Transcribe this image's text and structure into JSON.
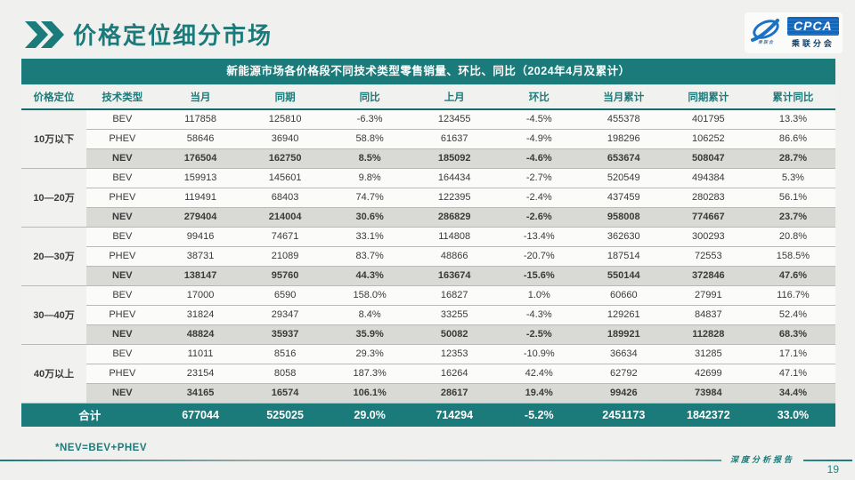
{
  "slide": {
    "title": "价格定位细分市场",
    "footnote": "*NEV=BEV+PHEV",
    "footer_label": "深度分析报告",
    "page_number": "19"
  },
  "logo": {
    "acronym": "CPCA",
    "name": "乘联分会",
    "sub": "乘联会"
  },
  "colors": {
    "teal": "#1b7b7a",
    "nev_row_bg": "#d9d9d6",
    "logo_blue": "#1565b8",
    "body_text": "#3a3a3a"
  },
  "table": {
    "title": "新能源市场各价格段不同技术类型零售销量、环比、同比（2024年4月及累计）",
    "columns": [
      "价格定位",
      "技术类型",
      "当月",
      "同期",
      "同比",
      "上月",
      "环比",
      "当月累计",
      "同期累计",
      "累计同比"
    ],
    "groups": [
      {
        "label": "10万以下",
        "rows": [
          {
            "tech": "BEV",
            "values": [
              "117858",
              "125810",
              "-6.3%",
              "123455",
              "-4.5%",
              "455378",
              "401795",
              "13.3%"
            ]
          },
          {
            "tech": "PHEV",
            "values": [
              "58646",
              "36940",
              "58.8%",
              "61637",
              "-4.9%",
              "198296",
              "106252",
              "86.6%"
            ]
          },
          {
            "tech": "NEV",
            "values": [
              "176504",
              "162750",
              "8.5%",
              "185092",
              "-4.6%",
              "653674",
              "508047",
              "28.7%"
            ]
          }
        ]
      },
      {
        "label": "10—20万",
        "rows": [
          {
            "tech": "BEV",
            "values": [
              "159913",
              "145601",
              "9.8%",
              "164434",
              "-2.7%",
              "520549",
              "494384",
              "5.3%"
            ]
          },
          {
            "tech": "PHEV",
            "values": [
              "119491",
              "68403",
              "74.7%",
              "122395",
              "-2.4%",
              "437459",
              "280283",
              "56.1%"
            ]
          },
          {
            "tech": "NEV",
            "values": [
              "279404",
              "214004",
              "30.6%",
              "286829",
              "-2.6%",
              "958008",
              "774667",
              "23.7%"
            ]
          }
        ]
      },
      {
        "label": "20—30万",
        "rows": [
          {
            "tech": "BEV",
            "values": [
              "99416",
              "74671",
              "33.1%",
              "114808",
              "-13.4%",
              "362630",
              "300293",
              "20.8%"
            ]
          },
          {
            "tech": "PHEV",
            "values": [
              "38731",
              "21089",
              "83.7%",
              "48866",
              "-20.7%",
              "187514",
              "72553",
              "158.5%"
            ]
          },
          {
            "tech": "NEV",
            "values": [
              "138147",
              "95760",
              "44.3%",
              "163674",
              "-15.6%",
              "550144",
              "372846",
              "47.6%"
            ]
          }
        ]
      },
      {
        "label": "30—40万",
        "rows": [
          {
            "tech": "BEV",
            "values": [
              "17000",
              "6590",
              "158.0%",
              "16827",
              "1.0%",
              "60660",
              "27991",
              "116.7%"
            ]
          },
          {
            "tech": "PHEV",
            "values": [
              "31824",
              "29347",
              "8.4%",
              "33255",
              "-4.3%",
              "129261",
              "84837",
              "52.4%"
            ]
          },
          {
            "tech": "NEV",
            "values": [
              "48824",
              "35937",
              "35.9%",
              "50082",
              "-2.5%",
              "189921",
              "112828",
              "68.3%"
            ]
          }
        ]
      },
      {
        "label": "40万以上",
        "rows": [
          {
            "tech": "BEV",
            "values": [
              "11011",
              "8516",
              "29.3%",
              "12353",
              "-10.9%",
              "36634",
              "31285",
              "17.1%"
            ]
          },
          {
            "tech": "PHEV",
            "values": [
              "23154",
              "8058",
              "187.3%",
              "16264",
              "42.4%",
              "62792",
              "42699",
              "47.1%"
            ]
          },
          {
            "tech": "NEV",
            "values": [
              "34165",
              "16574",
              "106.1%",
              "28617",
              "19.4%",
              "99426",
              "73984",
              "34.4%"
            ]
          }
        ]
      }
    ],
    "total": {
      "label": "合计",
      "values": [
        "677044",
        "525025",
        "29.0%",
        "714294",
        "-5.2%",
        "2451173",
        "1842372",
        "33.0%"
      ]
    }
  }
}
